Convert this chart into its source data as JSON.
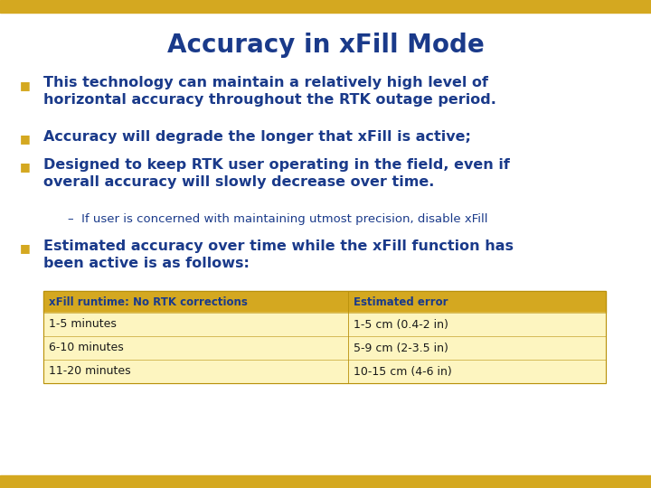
{
  "title": "Accuracy in xFill Mode",
  "title_color": "#1a3a8a",
  "title_fontsize": 20,
  "background_color": "#ffffff",
  "top_bar_color": "#d4a820",
  "bottom_bar_color": "#d4a820",
  "bullet_color": "#d4a820",
  "text_color": "#1a3a8a",
  "bullet_points": [
    "This technology can maintain a relatively high level of\nhorizontal accuracy throughout the RTK outage period.",
    "Accuracy will degrade the longer that xFill is active;",
    "Designed to keep RTK user operating in the field, even if\noverall accuracy will slowly decrease over time."
  ],
  "sub_bullet": "–  If user is concerned with maintaining utmost precision, disable xFill",
  "last_bullet": "Estimated accuracy over time while the xFill function has\nbeen active is as follows:",
  "table_header": [
    "xFill runtime: No RTK corrections",
    "Estimated error"
  ],
  "table_rows": [
    [
      "1-5 minutes",
      "1-5 cm (0.4-2 in)"
    ],
    [
      "6-10 minutes",
      "5-9 cm (2-3.5 in)"
    ],
    [
      "11-20 minutes",
      "10-15 cm (4-6 in)"
    ]
  ],
  "table_header_bg": "#d4a820",
  "table_row_bg": "#fdf5c0",
  "table_alt_row_bg": "#fdf5c0",
  "table_text_color": "#1a1a1a",
  "table_header_text_color": "#1a3a8a"
}
